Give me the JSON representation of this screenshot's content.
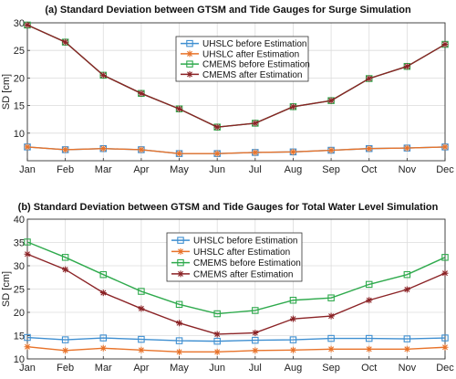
{
  "chart_data": [
    {
      "type": "line",
      "title": "(a) Standard Deviation between GTSM and Tide Gauges for Surge Simulation",
      "ylabel": "SD [cm]",
      "xlabel": "",
      "categories": [
        "Jan",
        "Feb",
        "Mar",
        "Apr",
        "May",
        "Jun",
        "Jul",
        "Aug",
        "Sep",
        "Oct",
        "Nov",
        "Dec"
      ],
      "ylim": [
        5,
        30
      ],
      "yticks": [
        10,
        15,
        20,
        25,
        30
      ],
      "grid": true,
      "legend_position": "top-center",
      "series": [
        {
          "name": "UHSLC before Estimation",
          "color": "#3f8fd1",
          "marker": "square",
          "values": [
            7.5,
            7.0,
            7.2,
            7.0,
            6.3,
            6.3,
            6.5,
            6.6,
            6.9,
            7.2,
            7.3,
            7.5
          ]
        },
        {
          "name": "UHSLC after Estimation",
          "color": "#e8732a",
          "marker": "asterisk",
          "values": [
            7.5,
            7.0,
            7.2,
            7.0,
            6.3,
            6.3,
            6.5,
            6.6,
            6.9,
            7.2,
            7.3,
            7.5
          ]
        },
        {
          "name": "CMEMS before Estimation",
          "color": "#2faa4d",
          "marker": "square",
          "values": [
            29.6,
            26.5,
            20.5,
            17.2,
            14.4,
            11.1,
            11.8,
            14.8,
            15.9,
            19.9,
            22.1,
            26.1
          ]
        },
        {
          "name": "CMEMS after Estimation",
          "color": "#8b2326",
          "marker": "asterisk",
          "values": [
            29.6,
            26.5,
            20.5,
            17.2,
            14.4,
            11.1,
            11.8,
            14.8,
            15.9,
            19.9,
            22.1,
            26.1
          ]
        }
      ]
    },
    {
      "type": "line",
      "title": "(b) Standard Deviation between GTSM and Tide Gauges for Total Water Level Simulation",
      "ylabel": "SD [cm]",
      "xlabel": "",
      "categories": [
        "Jan",
        "Feb",
        "Mar",
        "Apr",
        "May",
        "Jun",
        "Jul",
        "Aug",
        "Sep",
        "Oct",
        "Nov",
        "Dec"
      ],
      "ylim": [
        10,
        40
      ],
      "yticks": [
        10,
        15,
        20,
        25,
        30,
        35,
        40
      ],
      "grid": true,
      "legend_position": "top-center",
      "series": [
        {
          "name": "UHSLC before Estimation",
          "color": "#3f8fd1",
          "marker": "square",
          "values": [
            14.6,
            14.1,
            14.5,
            14.2,
            13.9,
            13.8,
            14.0,
            14.1,
            14.4,
            14.4,
            14.3,
            14.5
          ]
        },
        {
          "name": "UHSLC after Estimation",
          "color": "#e8732a",
          "marker": "asterisk",
          "values": [
            12.6,
            11.8,
            12.3,
            11.9,
            11.5,
            11.5,
            11.8,
            11.9,
            12.1,
            12.1,
            12.1,
            12.5
          ]
        },
        {
          "name": "CMEMS before Estimation",
          "color": "#2faa4d",
          "marker": "square",
          "values": [
            35.1,
            31.8,
            28.1,
            24.5,
            21.7,
            19.7,
            20.4,
            22.6,
            23.1,
            26.0,
            28.1,
            31.8
          ]
        },
        {
          "name": "CMEMS after Estimation",
          "color": "#8b2326",
          "marker": "asterisk",
          "values": [
            32.5,
            29.2,
            24.2,
            20.8,
            17.7,
            15.3,
            15.6,
            18.6,
            19.2,
            22.6,
            24.9,
            28.4
          ]
        }
      ]
    }
  ]
}
